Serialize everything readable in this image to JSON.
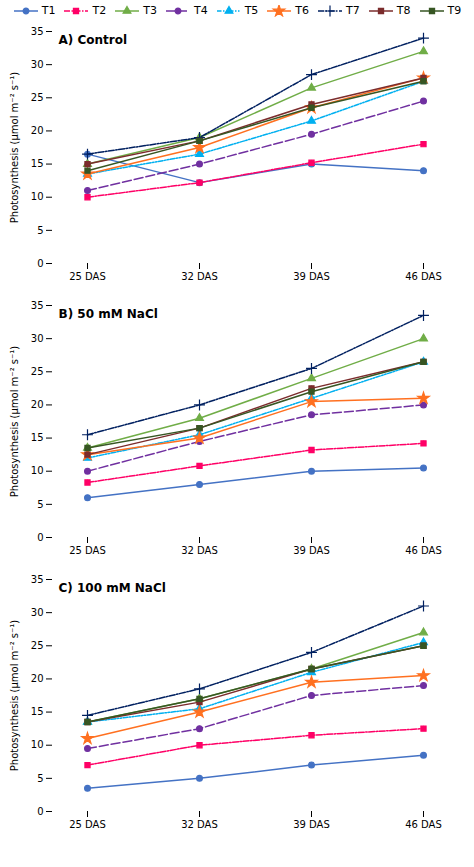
{
  "chart_data": [
    {
      "type": "line",
      "title": "A) Control",
      "categories": [
        "25 DAS",
        "32 DAS",
        "39 DAS",
        "46 DAS"
      ],
      "ylabel": "Photosynthesis (μmol m⁻² s⁻¹)",
      "ylim": [
        0,
        35
      ],
      "yticks": [
        0,
        5,
        10,
        15,
        20,
        25,
        30,
        35
      ],
      "grid": false,
      "legend": "top",
      "series": [
        {
          "name": "T1",
          "color": "#4472C4",
          "line_style": "solid",
          "marker": "circle",
          "values": [
            16.5,
            12.2,
            15.0,
            14.0
          ],
          "error": [
            0.35,
            0.35,
            0.35,
            0.35
          ]
        },
        {
          "name": "T2",
          "color": "#FF0066",
          "line_style": "dashdot",
          "marker": "square",
          "values": [
            10.0,
            12.2,
            15.2,
            18.0
          ],
          "error": [
            0.35,
            0.35,
            0.35,
            0.35
          ]
        },
        {
          "name": "T3",
          "color": "#70AD47",
          "line_style": "solid",
          "marker": "triangle",
          "values": [
            15.0,
            19.0,
            26.5,
            32.0
          ],
          "error": [
            0.35,
            0.35,
            0.35,
            0.35
          ]
        },
        {
          "name": "T4",
          "color": "#7030A0",
          "line_style": "dashed",
          "marker": "circle",
          "values": [
            11.0,
            15.0,
            19.5,
            24.5
          ],
          "error": [
            0.35,
            0.35,
            0.35,
            0.35
          ]
        },
        {
          "name": "T5",
          "color": "#00B0F0",
          "line_style": "dashdotdot",
          "marker": "triangle",
          "values": [
            13.5,
            16.5,
            21.5,
            27.5
          ],
          "error": [
            0.35,
            0.35,
            0.35,
            0.35
          ]
        },
        {
          "name": "T6",
          "color": "#FF7020",
          "line_style": "solid",
          "marker": "star",
          "values": [
            13.5,
            17.5,
            23.5,
            28.0
          ],
          "error": [
            0.35,
            0.35,
            0.35,
            0.35
          ]
        },
        {
          "name": "T7",
          "color": "#002060",
          "line_style": "dashdot",
          "marker": "plus",
          "values": [
            16.5,
            19.0,
            28.5,
            34.0
          ],
          "error": [
            0.35,
            0.35,
            0.35,
            0.35
          ]
        },
        {
          "name": "T8",
          "color": "#7B2C2C",
          "line_style": "solid",
          "marker": "square",
          "values": [
            15.0,
            18.5,
            24.0,
            28.0
          ],
          "error": [
            0.35,
            0.35,
            0.35,
            0.35
          ]
        },
        {
          "name": "T9",
          "color": "#375623",
          "line_style": "solid",
          "marker": "square",
          "values": [
            14.0,
            18.5,
            23.5,
            27.5
          ],
          "error": [
            0.35,
            0.35,
            0.35,
            0.35
          ]
        }
      ]
    },
    {
      "type": "line",
      "title": "B) 50 mM NaCl",
      "categories": [
        "25 DAS",
        "32 DAS",
        "39 DAS",
        "46 DAS"
      ],
      "ylabel": "Photosynthesis (μmol m⁻² s⁻¹)",
      "ylim": [
        0,
        35
      ],
      "yticks": [
        0,
        5,
        10,
        15,
        20,
        25,
        30,
        35
      ],
      "grid": false,
      "series": [
        {
          "name": "T1",
          "color": "#4472C4",
          "line_style": "solid",
          "marker": "circle",
          "values": [
            6.0,
            8.0,
            10.0,
            10.5
          ],
          "error": [
            0.35,
            0.35,
            0.35,
            0.35
          ]
        },
        {
          "name": "T2",
          "color": "#FF0066",
          "line_style": "dashdot",
          "marker": "square",
          "values": [
            8.3,
            10.8,
            13.2,
            14.2
          ],
          "error": [
            0.35,
            0.35,
            0.35,
            0.35
          ]
        },
        {
          "name": "T3",
          "color": "#70AD47",
          "line_style": "solid",
          "marker": "triangle",
          "values": [
            13.5,
            18.0,
            24.0,
            30.0
          ],
          "error": [
            0.35,
            0.35,
            0.35,
            0.35
          ]
        },
        {
          "name": "T4",
          "color": "#7030A0",
          "line_style": "dashed",
          "marker": "circle",
          "values": [
            10.0,
            14.5,
            18.5,
            20.0
          ],
          "error": [
            0.35,
            0.35,
            0.35,
            0.35
          ]
        },
        {
          "name": "T5",
          "color": "#00B0F0",
          "line_style": "dashdotdot",
          "marker": "triangle",
          "values": [
            12.0,
            15.5,
            21.0,
            26.5
          ],
          "error": [
            0.35,
            0.35,
            0.35,
            0.35
          ]
        },
        {
          "name": "T6",
          "color": "#FF7020",
          "line_style": "solid",
          "marker": "star",
          "values": [
            12.5,
            15.0,
            20.5,
            21.0
          ],
          "error": [
            0.35,
            0.35,
            0.35,
            0.35
          ]
        },
        {
          "name": "T7",
          "color": "#002060",
          "line_style": "dashdot",
          "marker": "plus",
          "values": [
            15.5,
            20.0,
            25.5,
            33.5
          ],
          "error": [
            0.35,
            0.35,
            0.35,
            0.35
          ]
        },
        {
          "name": "T8",
          "color": "#7B2C2C",
          "line_style": "solid",
          "marker": "square",
          "values": [
            12.5,
            16.5,
            22.5,
            26.5
          ],
          "error": [
            0.35,
            0.35,
            0.35,
            0.35
          ]
        },
        {
          "name": "T9",
          "color": "#375623",
          "line_style": "solid",
          "marker": "square",
          "values": [
            13.5,
            16.5,
            22.0,
            26.5
          ],
          "error": [
            0.35,
            0.35,
            0.35,
            0.35
          ]
        }
      ]
    },
    {
      "type": "line",
      "title": "C) 100 mM NaCl",
      "categories": [
        "25 DAS",
        "32 DAS",
        "39 DAS",
        "46 DAS"
      ],
      "ylabel": "Photosynthesis (μmol m⁻² s⁻¹)",
      "ylim": [
        0,
        35
      ],
      "yticks": [
        0,
        5,
        10,
        15,
        20,
        25,
        30,
        35
      ],
      "grid": false,
      "series": [
        {
          "name": "T1",
          "color": "#4472C4",
          "line_style": "solid",
          "marker": "circle",
          "values": [
            3.5,
            5.0,
            7.0,
            8.5
          ],
          "error": [
            0.35,
            0.35,
            0.35,
            0.35
          ]
        },
        {
          "name": "T2",
          "color": "#FF0066",
          "line_style": "dashdot",
          "marker": "square",
          "values": [
            7.0,
            10.0,
            11.5,
            12.5
          ],
          "error": [
            0.35,
            0.35,
            0.35,
            0.35
          ]
        },
        {
          "name": "T3",
          "color": "#70AD47",
          "line_style": "solid",
          "marker": "triangle",
          "values": [
            13.5,
            17.0,
            21.5,
            27.0
          ],
          "error": [
            0.35,
            0.35,
            0.35,
            0.35
          ]
        },
        {
          "name": "T4",
          "color": "#7030A0",
          "line_style": "dashed",
          "marker": "circle",
          "values": [
            9.5,
            12.5,
            17.5,
            19.0
          ],
          "error": [
            0.35,
            0.35,
            0.35,
            0.35
          ]
        },
        {
          "name": "T5",
          "color": "#00B0F0",
          "line_style": "dashdotdot",
          "marker": "triangle",
          "values": [
            13.5,
            15.5,
            21.0,
            25.5
          ],
          "error": [
            0.35,
            0.35,
            0.35,
            0.35
          ]
        },
        {
          "name": "T6",
          "color": "#FF7020",
          "line_style": "solid",
          "marker": "star",
          "values": [
            11.0,
            15.0,
            19.5,
            20.5
          ],
          "error": [
            0.35,
            0.35,
            0.35,
            0.35
          ]
        },
        {
          "name": "T7",
          "color": "#002060",
          "line_style": "dashdot",
          "marker": "plus",
          "values": [
            14.5,
            18.5,
            24.0,
            31.0
          ],
          "error": [
            0.35,
            0.35,
            0.35,
            0.35
          ]
        },
        {
          "name": "T8",
          "color": "#7B2C2C",
          "line_style": "solid",
          "marker": "square",
          "values": [
            13.5,
            16.5,
            21.5,
            25.0
          ],
          "error": [
            0.35,
            0.35,
            0.35,
            0.35
          ]
        },
        {
          "name": "T9",
          "color": "#375623",
          "line_style": "solid",
          "marker": "square",
          "values": [
            13.5,
            17.0,
            21.5,
            25.0
          ],
          "error": [
            0.35,
            0.35,
            0.35,
            0.35
          ]
        }
      ]
    }
  ]
}
